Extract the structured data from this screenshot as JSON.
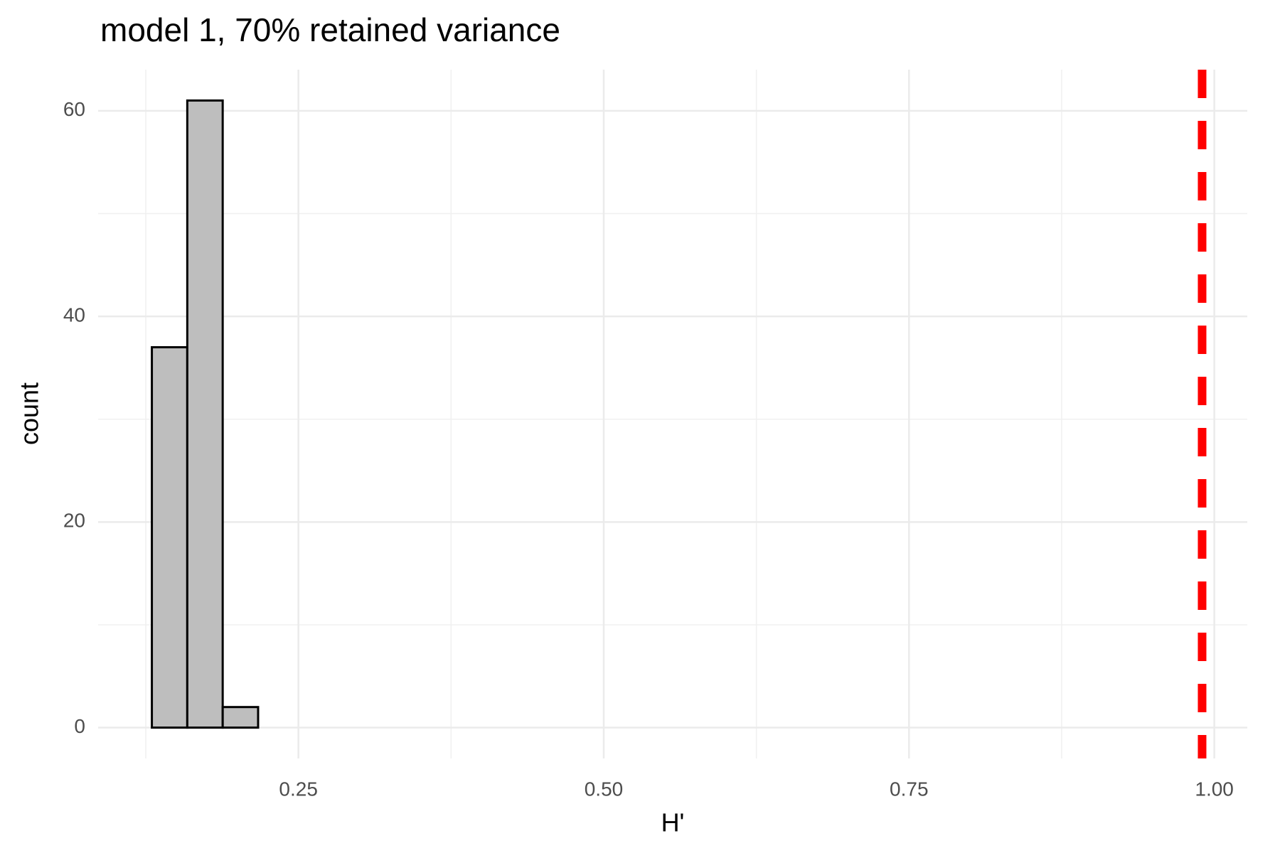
{
  "chart_data": {
    "type": "histogram",
    "title": "model 1, 70% retained variance",
    "x_label": "H'",
    "y_label": "count",
    "bins": [
      0.13,
      0.159,
      0.188,
      0.217,
      0.246,
      0.275,
      0.304,
      0.333,
      0.362,
      0.391,
      0.42,
      0.449,
      0.478,
      0.507,
      0.536,
      0.565,
      0.594,
      0.623,
      0.652,
      0.681,
      0.71,
      0.739,
      0.768,
      0.797,
      0.826,
      0.855,
      0.884,
      0.913,
      0.942,
      0.971,
      1.0
    ],
    "values": [
      37,
      61,
      2,
      0,
      0,
      0,
      0,
      0,
      0,
      0,
      0,
      0,
      0,
      0,
      0,
      0,
      0,
      0,
      0,
      0,
      0,
      0,
      0,
      0,
      0,
      0,
      0,
      0,
      0,
      0
    ],
    "color": "#bebebe",
    "edge_color": "#000000",
    "vline": 0.99,
    "vline_color": "#ff0000",
    "xlim": [
      0.086,
      1.027
    ],
    "xticks": [
      {
        "value": 0.25,
        "label": "0.25"
      },
      {
        "value": 0.5,
        "label": "0.50"
      },
      {
        "value": 0.75,
        "label": "0.75"
      },
      {
        "value": 1.0,
        "label": "1.00"
      }
    ],
    "ylim": [
      -3,
      64
    ],
    "yticks": [
      0,
      20,
      40,
      60
    ],
    "grid": true
  }
}
